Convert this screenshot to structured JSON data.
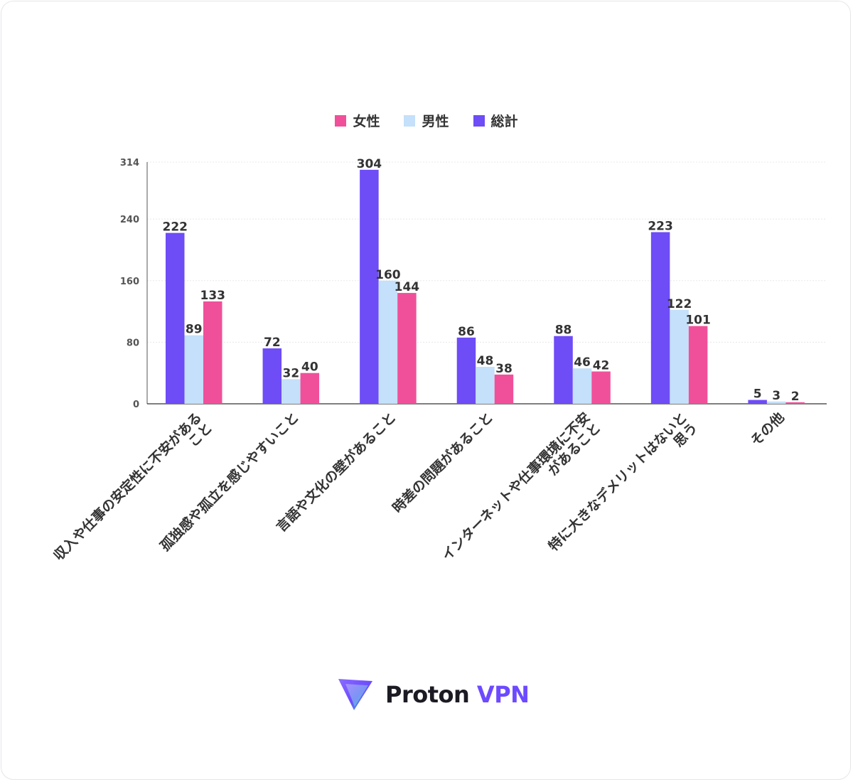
{
  "chart_data": {
    "type": "bar",
    "categories": [
      "収入や仕事の安定性に不安があること",
      "孤独感や孤立を感じやすいこと",
      "言語や文化の壁があること",
      "時差の問題があること",
      "インターネットや仕事環境に不安があること",
      "特に大きなデメリットはないと思う",
      "その他"
    ],
    "category_lines": [
      [
        "収入や仕事の安定性に不安がある",
        "こと"
      ],
      [
        "孤独感や孤立を感じやすいこと"
      ],
      [
        "言語や文化の壁があること"
      ],
      [
        "時差の問題があること"
      ],
      [
        "インターネットや仕事環境に不安",
        "があること"
      ],
      [
        "特に大きなデメリットはないと",
        "思う"
      ],
      [
        "その他"
      ]
    ],
    "series": [
      {
        "name": "総計",
        "color": "#6e4cf6",
        "values": [
          222,
          72,
          304,
          86,
          88,
          223,
          5
        ]
      },
      {
        "name": "男性",
        "color": "#c4e0fa",
        "values": [
          89,
          32,
          160,
          48,
          46,
          122,
          3
        ]
      },
      {
        "name": "女性",
        "color": "#f0509a",
        "values": [
          133,
          40,
          144,
          38,
          42,
          101,
          2
        ]
      }
    ],
    "legend_order": [
      "女性",
      "男性",
      "総計"
    ],
    "yticks": [
      0,
      80,
      160,
      240,
      314
    ],
    "ylim": [
      0,
      314
    ],
    "grid": true,
    "legend_position": "top-center",
    "title": "",
    "xlabel": "",
    "ylabel": ""
  },
  "brand": {
    "name": "Proton",
    "product": "VPN"
  }
}
